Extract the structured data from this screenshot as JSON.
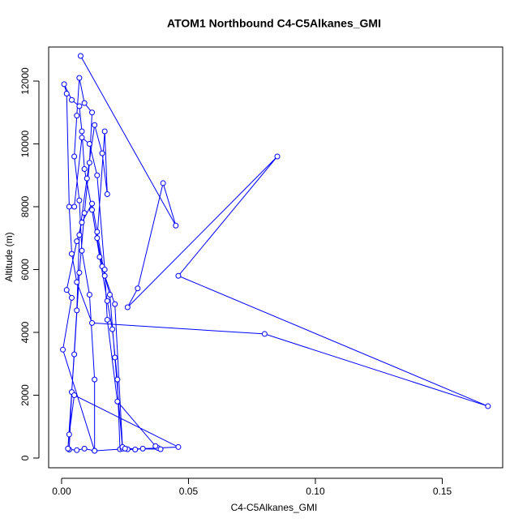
{
  "chart_data": {
    "type": "line",
    "title": "ATOM1 Northbound C4-C5Alkanes_GMI",
    "x_label": "C4-C5Alkanes_GMI",
    "y_label": "Altitude (m)",
    "color": "#0000ff",
    "markers": true,
    "xlim": [
      -0.0051,
      0.1738
    ],
    "ylim": [
      -310,
      13084
    ],
    "xticks": [
      {
        "value": 0,
        "label": "0.00"
      },
      {
        "value": 0.05,
        "label": "0.05"
      },
      {
        "value": 0.1,
        "label": "0.10"
      },
      {
        "value": 0.15,
        "label": "0.15"
      }
    ],
    "yticks": [
      0,
      2000,
      4000,
      6000,
      8000,
      10000,
      12000
    ],
    "x": [
      0.0075,
      0.045,
      0.04,
      0.03,
      0.026,
      0.085,
      0.046,
      0.168,
      0.08,
      0.012,
      0.006,
      0.004,
      0.003,
      0.002,
      0.001,
      0.004,
      0.007,
      0.008,
      0.009,
      0.012,
      0.015,
      0.018,
      0.02,
      0.022,
      0.023,
      0.013,
      0.009,
      0.006,
      0.003,
      0.004,
      0.006,
      0.007,
      0.01,
      0.013,
      0.016,
      0.018,
      0.017,
      0.014,
      0.016,
      0.019,
      0.021,
      0.024,
      0.026,
      0.029,
      0.032,
      0.038,
      0.046,
      0.005,
      0.003,
      0.0025,
      0.005,
      0.007,
      0.009,
      0.011,
      0.012,
      0.009,
      0.007,
      0.006,
      0.005,
      0.007,
      0.008,
      0.011,
      0.013,
      0.013,
      0.0005,
      0.004,
      0.002,
      0.006,
      0.008,
      0.012,
      0.014,
      0.017,
      0.021,
      0.024,
      0.025,
      0.039,
      0.037,
      0.022,
      0.018,
      0.017,
      0.014,
      0.011,
      0.008,
      0.005
    ],
    "values": [
      12800,
      7400,
      8750,
      5400,
      4800,
      9600,
      5800,
      1650,
      3950,
      4300,
      5600,
      6500,
      8000,
      11600,
      11900,
      11400,
      11200,
      10400,
      9200,
      7900,
      6400,
      5000,
      4100,
      2500,
      280,
      230,
      300,
      250,
      270,
      2100,
      4700,
      7100,
      8900,
      10600,
      9700,
      8400,
      10400,
      7000,
      6100,
      5200,
      3200,
      300,
      280,
      270,
      300,
      320,
      350,
      2000,
      750,
      300,
      3300,
      5900,
      7800,
      9400,
      11000,
      11300,
      12100,
      10900,
      9600,
      8200,
      6600,
      5200,
      2500,
      230,
      3450,
      5100,
      5350,
      6900,
      7500,
      8100,
      7200,
      5800,
      4900,
      350,
      300,
      280,
      380,
      1800,
      4400,
      6000,
      9000,
      10000,
      10200,
      8000
    ]
  }
}
